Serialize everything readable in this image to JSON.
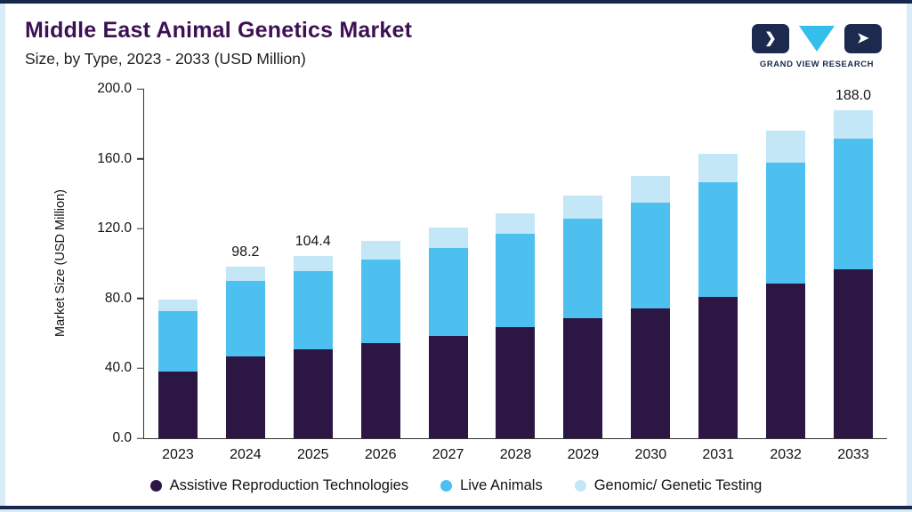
{
  "header": {
    "title": "Middle East Animal Genetics Market",
    "subtitle": "Size, by Type, 2023 - 2033 (USD Million)",
    "logo_text": "GRAND VIEW RESEARCH"
  },
  "chart_data": {
    "type": "bar",
    "stacked": true,
    "title": "Middle East Animal Genetics Market Size, by Type, 2023 - 2033 (USD Million)",
    "xlabel": "",
    "ylabel": "Market Size (USD Million)",
    "ylim": [
      0,
      200
    ],
    "yticks": [
      "0.0",
      "40.0",
      "80.0",
      "120.0",
      "160.0",
      "200.0"
    ],
    "grid": false,
    "legend_position": "bottom",
    "categories": [
      "2023",
      "2024",
      "2025",
      "2026",
      "2027",
      "2028",
      "2029",
      "2030",
      "2031",
      "2032",
      "2033"
    ],
    "series": [
      {
        "name": "Assistive Reproduction Technologies",
        "color": "#2b1644",
        "values": [
          38.0,
          47.0,
          51.0,
          54.5,
          58.5,
          63.5,
          68.5,
          74.5,
          81.0,
          88.5,
          96.5
        ]
      },
      {
        "name": "Live Animals",
        "color": "#4ec0ef",
        "values": [
          35.0,
          43.0,
          44.5,
          48.0,
          50.5,
          53.5,
          57.0,
          60.5,
          65.5,
          69.5,
          75.0
        ]
      },
      {
        "name": "Genomic/ Genetic Testing",
        "color": "#c4e7f8",
        "values": [
          6.5,
          8.2,
          8.9,
          10.5,
          11.5,
          12.0,
          13.5,
          15.0,
          16.5,
          18.0,
          16.5
        ]
      }
    ],
    "totals_labels": {
      "2024": "98.2",
      "2025": "104.4",
      "2033": "188.0"
    }
  },
  "colors": {
    "accent_purple": "#3d1054",
    "navy": "#1b2a4e",
    "cyan": "#35bdec",
    "page_background": "#d9ebf6"
  },
  "logo_glyphs": {
    "left": "❯",
    "right": "➤"
  }
}
